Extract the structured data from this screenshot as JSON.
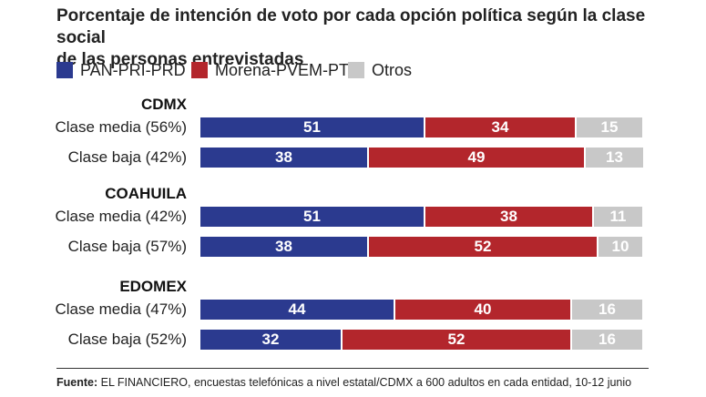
{
  "title_lines": [
    "Porcentaje de intención de voto por cada opción política según la clase social",
    "de las personas entrevistadas"
  ],
  "legend": [
    {
      "name": "PAN-PRI-PRD",
      "color": "#2b3a8f"
    },
    {
      "name": "Morena-PVEM-PT",
      "color": "#b3262c"
    },
    {
      "name": "Otros",
      "color": "#c8c8c8"
    }
  ],
  "chart_data": {
    "type": "bar",
    "orientation": "horizontal",
    "stacked": true,
    "series_names": [
      "PAN-PRI-PRD",
      "Morena-PVEM-PT",
      "Otros"
    ],
    "groups": [
      {
        "name": "CDMX",
        "rows": [
          {
            "label": "Clase media (56%)",
            "values": [
              51,
              34,
              15
            ]
          },
          {
            "label": "Clase baja (42%)",
            "values": [
              38,
              49,
              13
            ]
          }
        ]
      },
      {
        "name": "COAHUILA",
        "rows": [
          {
            "label": "Clase media (42%)",
            "values": [
              51,
              38,
              11
            ]
          },
          {
            "label": "Clase baja (57%)",
            "values": [
              38,
              52,
              10
            ]
          }
        ]
      },
      {
        "name": "EDOMEX",
        "rows": [
          {
            "label": "Clase media (47%)",
            "values": [
              44,
              40,
              16
            ]
          },
          {
            "label": "Clase baja (52%)",
            "values": [
              32,
              52,
              16
            ]
          }
        ]
      }
    ]
  },
  "source": {
    "label": "Fuente:",
    "text": " EL FINANCIERO, encuestas telefónicas a nivel estatal/CDMX a 600 adultos en cada entidad, 10-12 junio"
  }
}
